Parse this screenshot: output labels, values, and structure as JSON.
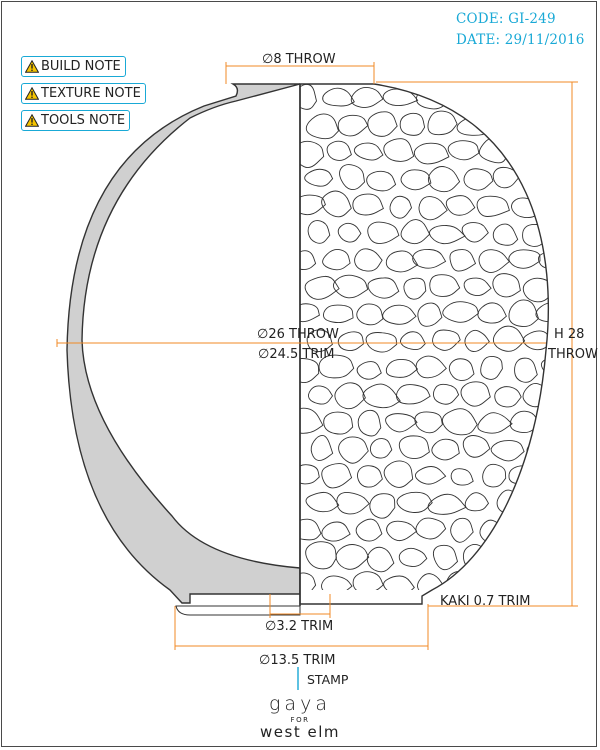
{
  "header": {
    "code": "CODE: GI-249",
    "date": "DATE: 29/11/2016"
  },
  "notes": [
    {
      "label": "BUILD NOTE",
      "icon": "warning-icon"
    },
    {
      "label": "TEXTURE NOTE",
      "icon": "warning-icon"
    },
    {
      "label": "TOOLS NOTE",
      "icon": "warning-icon"
    }
  ],
  "dimensions": {
    "top_opening": "∅8 THROW",
    "max_diameter_throw": "∅26 THROW",
    "max_diameter_trim": "∅24.5 TRIM",
    "height_line1": "H 28",
    "height_line2": "THROW",
    "foot_inner": "∅3.2 TRIM",
    "foot_outer": "∅13.5 TRIM",
    "kaki": "KAKI 0.7 TRIM"
  },
  "stamp": {
    "label": "STAMP"
  },
  "brand": {
    "line1": "gaya",
    "line2": "FOR",
    "line3": "west elm"
  },
  "colors": {
    "dimension": "#f08a24",
    "accent": "#19a9d6",
    "wall": "#d0d0d0",
    "line": "#333333"
  }
}
